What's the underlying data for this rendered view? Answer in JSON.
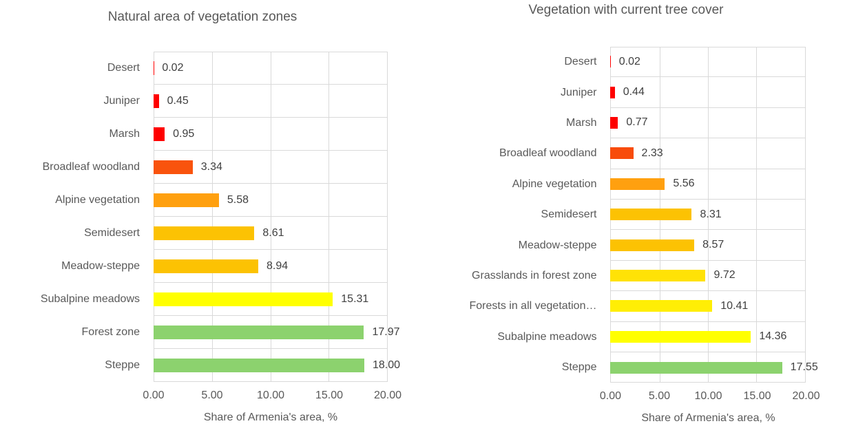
{
  "theme": {
    "background": "#FFFFFF",
    "gridline_color": "#D9D9D9",
    "title_color": "#595959",
    "label_color": "#595959",
    "value_label_color": "#404040"
  },
  "chart_data": [
    {
      "type": "bar",
      "orientation": "horizontal",
      "title": "Natural area of vegetation zones",
      "xlabel": "Share of Armenia's area, %",
      "xlim": [
        0,
        20
      ],
      "x_ticks": [
        "0.00",
        "5.00",
        "10.00",
        "15.00",
        "20.00"
      ],
      "grid": true,
      "legend": false,
      "categories": [
        "Desert",
        "Juniper",
        "Marsh",
        "Broadleaf woodland",
        "Alpine vegetation",
        "Semidesert",
        "Meadow-steppe",
        "Subalpine meadows",
        "Forest zone",
        "Steppe"
      ],
      "values": [
        0.02,
        0.45,
        0.95,
        3.34,
        5.58,
        8.61,
        8.94,
        15.31,
        17.97,
        18.0
      ],
      "value_labels": [
        "0.02",
        "0.45",
        "0.95",
        "3.34",
        "5.58",
        "8.61",
        "8.94",
        "15.31",
        "17.97",
        "18.00"
      ],
      "colors": [
        "#FE0000",
        "#FE0000",
        "#FE0000",
        "#F9530D",
        "#FFA00F",
        "#FCC203",
        "#FCC203",
        "#FFFF00",
        "#8CD26E",
        "#8CD26E"
      ]
    },
    {
      "type": "bar",
      "orientation": "horizontal",
      "title": "Vegetation with current tree cover",
      "xlabel": "Share of Armenia's area, %",
      "xlim": [
        0,
        20
      ],
      "x_ticks": [
        "0.00",
        "5.00",
        "10.00",
        "15.00",
        "20.00"
      ],
      "grid": true,
      "legend": false,
      "categories": [
        "Desert",
        "Juniper",
        "Marsh",
        "Broadleaf woodland",
        "Alpine vegetation",
        "Semidesert",
        "Meadow-steppe",
        "Grasslands in forest zone",
        "Forests in all vegetation…",
        "Subalpine meadows",
        "Steppe"
      ],
      "values": [
        0.02,
        0.44,
        0.77,
        2.33,
        5.56,
        8.31,
        8.57,
        9.72,
        10.41,
        14.36,
        17.55
      ],
      "value_labels": [
        "0.02",
        "0.44",
        "0.77",
        "2.33",
        "5.56",
        "8.31",
        "8.57",
        "9.72",
        "10.41",
        "14.36",
        "17.55"
      ],
      "colors": [
        "#FE0000",
        "#FE0000",
        "#FE0000",
        "#F84C0B",
        "#FFA00F",
        "#FCC203",
        "#FCC203",
        "#FFE206",
        "#FFEE05",
        "#FFFF00",
        "#8CD26E"
      ]
    }
  ]
}
